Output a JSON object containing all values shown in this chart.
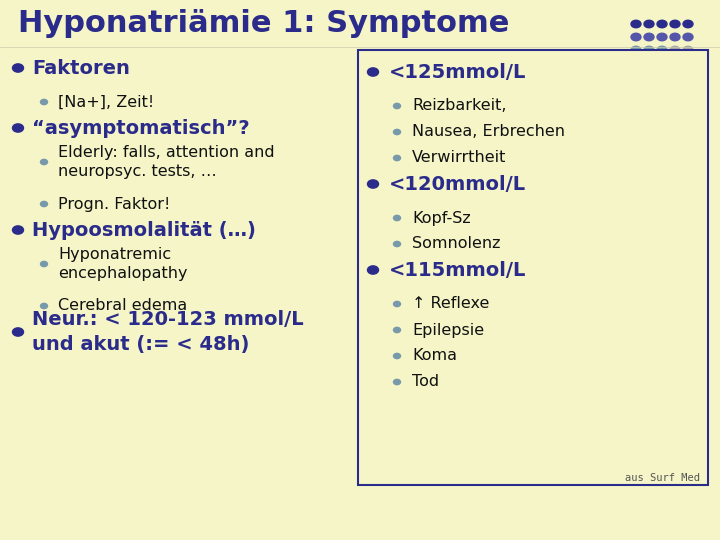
{
  "title": "Hyponatriämie 1: Symptome",
  "bg_color": "#f5f5c8",
  "title_color": "#2b2b8b",
  "title_fontsize": 22,
  "bullet_dark": "#2b2b8b",
  "bullet_gray": "#7799aa",
  "text_dark": "#2b2b8b",
  "text_color": "#111111",
  "box_border": "#2b2b8b",
  "left_col": [
    {
      "level": 1,
      "text": "Faktoren",
      "extra_below": 0
    },
    {
      "level": 2,
      "text": "[Na+], Zeit!",
      "extra_below": 0
    },
    {
      "level": 1,
      "text": "“asymptomatisch”?",
      "extra_below": 0
    },
    {
      "level": 2,
      "text": "Elderly: falls, attention and\nneuropsyc. tests, …",
      "extra_below": 0
    },
    {
      "level": 2,
      "text": "Progn. Faktor!",
      "extra_below": 0
    },
    {
      "level": 1,
      "text": "Hypoosmolalität (…)",
      "extra_below": 0
    },
    {
      "level": 2,
      "text": "Hyponatremic\nencephalopathy",
      "extra_below": 0
    },
    {
      "level": 2,
      "text": "Cerebral edema",
      "extra_below": 0
    },
    {
      "level": 1,
      "text": "Neur.: < 120-123 mmol/L\nund akut (:= < 48h)",
      "extra_below": 0
    }
  ],
  "right_col": [
    {
      "level": 1,
      "text": "<125mmol/L"
    },
    {
      "level": 2,
      "text": "Reizbarkeit,"
    },
    {
      "level": 2,
      "text": "Nausea, Erbrechen"
    },
    {
      "level": 2,
      "text": "Verwirrtheit"
    },
    {
      "level": 1,
      "text": "<120mmol/L"
    },
    {
      "level": 2,
      "text": "Kopf-Sz"
    },
    {
      "level": 2,
      "text": "Somnolenz"
    },
    {
      "level": 1,
      "text": "<115mmol/L"
    },
    {
      "level": 2,
      "text": "↑ Reflexe"
    },
    {
      "level": 2,
      "text": "Epilepsie"
    },
    {
      "level": 2,
      "text": "Koma"
    },
    {
      "level": 2,
      "text": "Tod"
    }
  ],
  "footer": "aus Surf Med",
  "dot_grid_colors": [
    [
      "#2b2b8b",
      "#2b2b8b",
      "#2b2b8b",
      "#2b2b8b",
      "#2b2b8b"
    ],
    [
      "#5555aa",
      "#5555aa",
      "#5555aa",
      "#5555aa",
      "#5555aa"
    ],
    [
      "#7799aa",
      "#7799aa",
      "#7799aa",
      "#aaaaaa",
      "#aaaaaa"
    ],
    [
      "#bbbb44",
      "#bbbb44",
      "#cccc88",
      "#ddddaa",
      "#eeeecc"
    ],
    [
      "#7799aa",
      "#aaaacc",
      "#ccccaa",
      "#ddddcc",
      "#eeeecc"
    ]
  ]
}
